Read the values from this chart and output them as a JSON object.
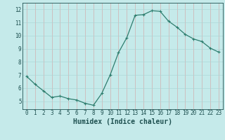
{
  "x": [
    0,
    1,
    2,
    3,
    4,
    5,
    6,
    7,
    8,
    9,
    10,
    11,
    12,
    13,
    14,
    15,
    16,
    17,
    18,
    19,
    20,
    21,
    22,
    23
  ],
  "y": [
    6.9,
    6.3,
    5.8,
    5.3,
    5.4,
    5.2,
    5.1,
    4.85,
    4.7,
    5.6,
    7.0,
    8.7,
    9.85,
    11.55,
    11.6,
    11.9,
    11.85,
    11.1,
    10.65,
    10.1,
    9.75,
    9.55,
    9.05,
    8.75
  ],
  "line_color": "#2e7d6e",
  "marker": "+",
  "marker_size": 3,
  "marker_lw": 0.8,
  "bg_color": "#c5eaea",
  "grid_color_v": "#d4a0a0",
  "grid_color_h": "#a8d4d4",
  "xlabel": "Humidex (Indice chaleur)",
  "xlim": [
    -0.5,
    23.5
  ],
  "ylim": [
    4.4,
    12.5
  ],
  "yticks": [
    5,
    6,
    7,
    8,
    9,
    10,
    11,
    12
  ],
  "xticks": [
    0,
    1,
    2,
    3,
    4,
    5,
    6,
    7,
    8,
    9,
    10,
    11,
    12,
    13,
    14,
    15,
    16,
    17,
    18,
    19,
    20,
    21,
    22,
    23
  ],
  "tick_color": "#1e5050",
  "label_fontsize": 6.5,
  "tick_fontsize": 5.5,
  "xlabel_fontsize": 7,
  "line_width": 0.9
}
